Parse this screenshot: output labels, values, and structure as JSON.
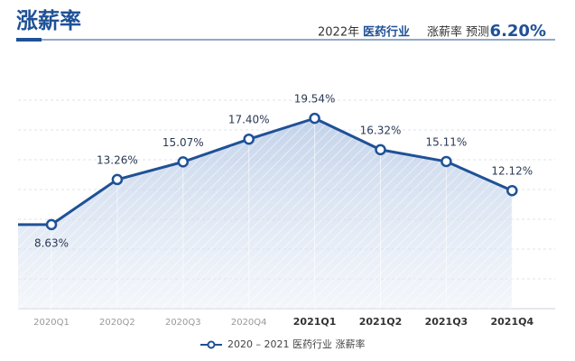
{
  "header": {
    "title": "涨薪率",
    "year": "2022年",
    "industry": "医药行业",
    "metric": "涨薪率",
    "note": "预测",
    "forecast_label": "6.20%"
  },
  "chart_data": {
    "type": "line",
    "categories": [
      "2020Q1",
      "2020Q2",
      "2020Q3",
      "2020Q4",
      "2021Q1",
      "2021Q2",
      "2021Q3",
      "2021Q4"
    ],
    "series": [
      {
        "name": "2020 – 2021 医药行业 涨薪率",
        "color": "#1f5196",
        "values": [
          8.63,
          13.26,
          15.07,
          17.4,
          19.54,
          16.32,
          15.11,
          12.12
        ],
        "value_labels": [
          "8.63%",
          "13.26%",
          "15.07%",
          "17.40%",
          "19.54%",
          "16.32%",
          "15.11%",
          "12.12%"
        ]
      }
    ],
    "ylim": [
      0,
      24
    ]
  }
}
